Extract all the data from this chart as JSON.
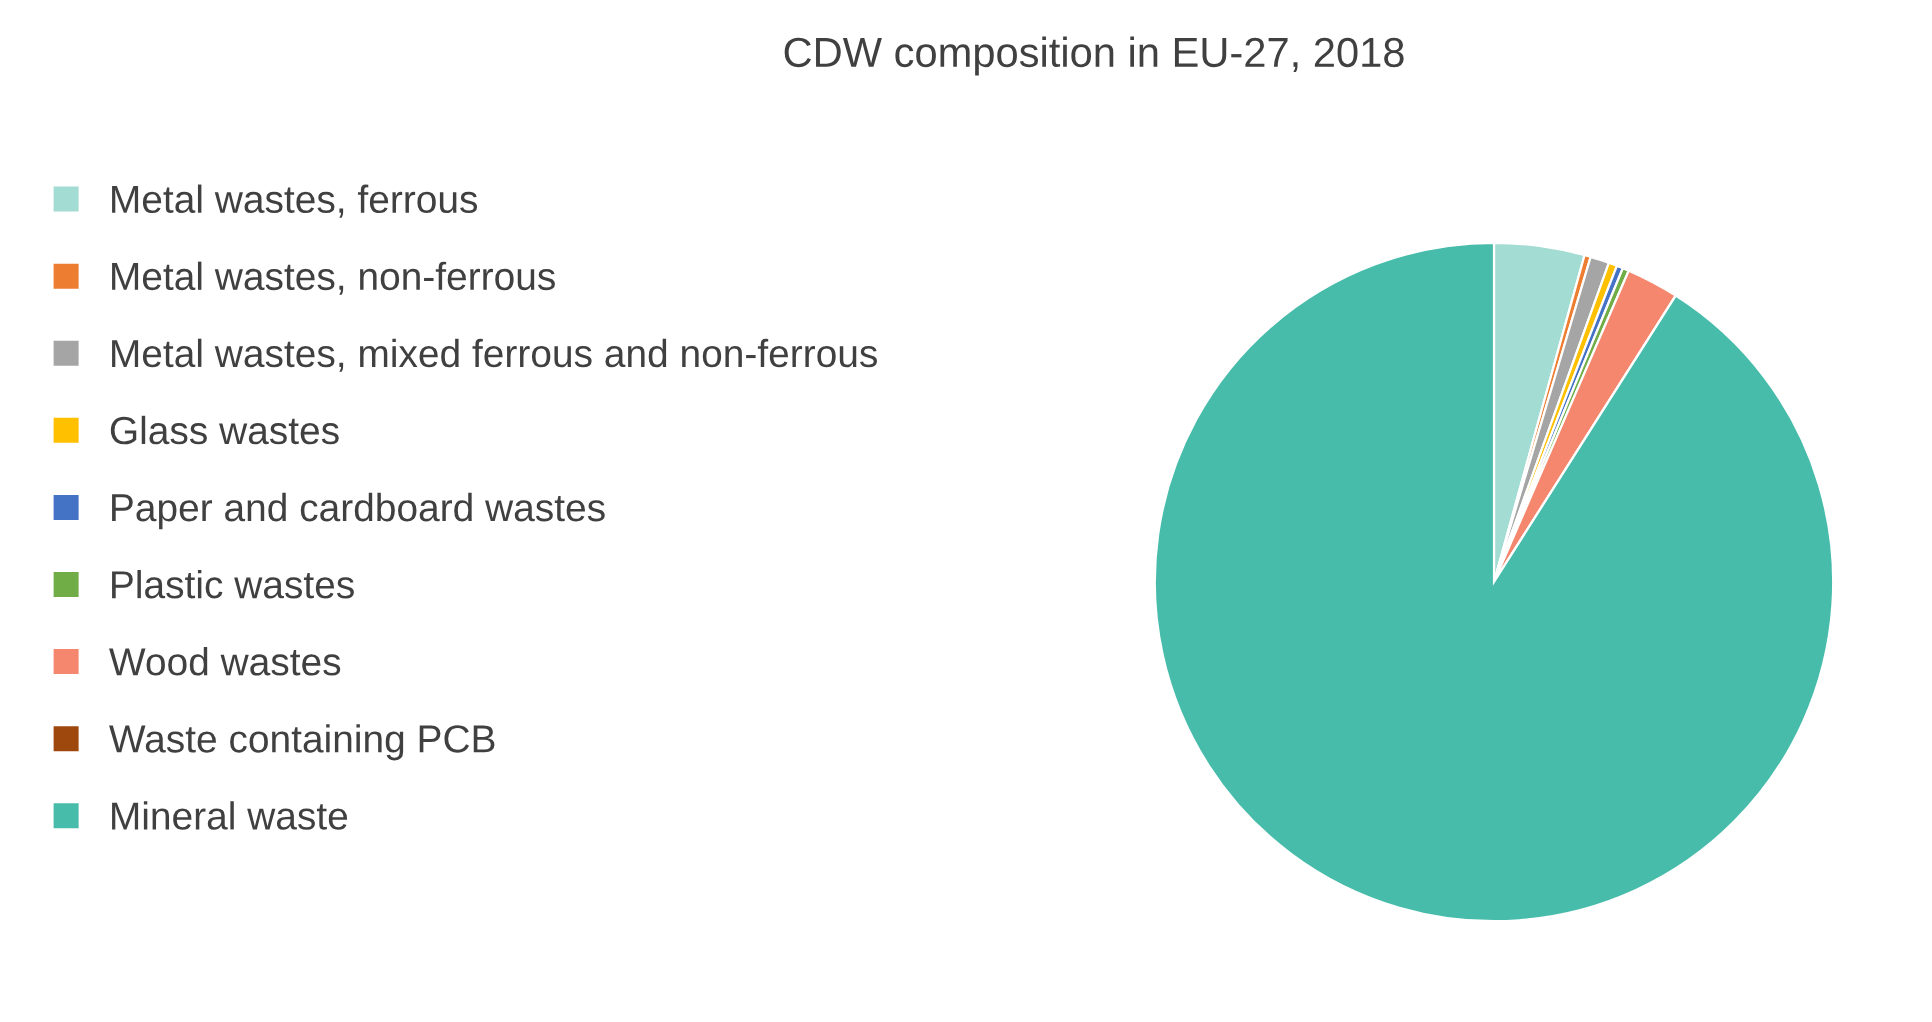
{
  "chart_data": {
    "type": "pie",
    "title": "CDW composition in EU-27, 2018",
    "categories": [
      "Metal wastes, ferrous",
      "Metal wastes, non-ferrous",
      "Metal wastes, mixed ferrous and non-ferrous",
      "Glass wastes",
      "Paper and cardboard wastes",
      "Plastic wastes",
      "Wood wastes",
      "Waste containing PCB",
      "Mineral waste"
    ],
    "values": [
      4.3,
      0.3,
      0.9,
      0.4,
      0.3,
      0.3,
      2.5,
      0,
      91.0
    ],
    "colors": [
      "#a3dcd3",
      "#ed7d31",
      "#a5a5a5",
      "#ffc000",
      "#4472c4",
      "#70ad47",
      "#f4876d",
      "#9e480e",
      "#47bcab"
    ],
    "legend": "left"
  }
}
